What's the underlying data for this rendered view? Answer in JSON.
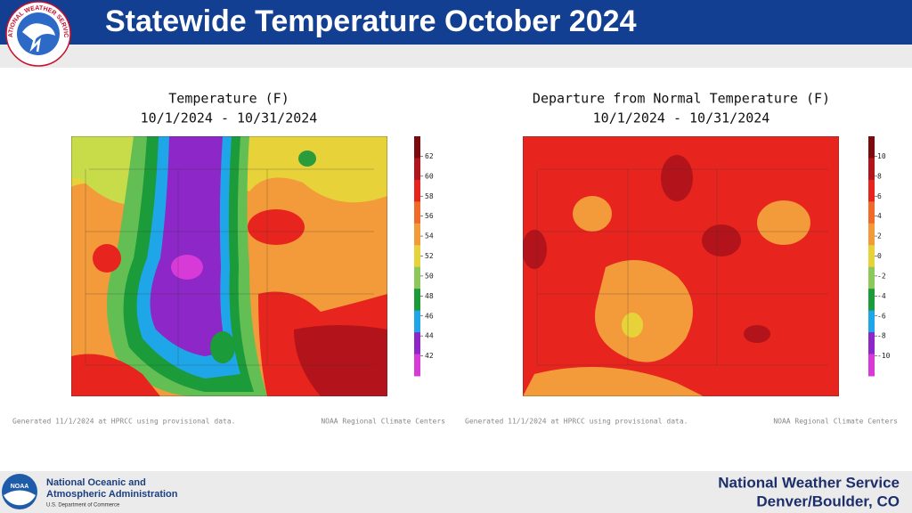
{
  "header": {
    "title": "Statewide Temperature October 2024",
    "logo_text": "NATIONAL WEATHER SERVICE"
  },
  "panels": [
    {
      "title": "Temperature (F)",
      "dates": "10/1/2024 - 10/31/2024",
      "legend_ticks": [
        62,
        60,
        58,
        56,
        54,
        52,
        50,
        48,
        46,
        44,
        42
      ],
      "generated": "Generated 11/1/2024 at HPRCC using provisional data.",
      "credit": "NOAA Regional Climate Centers"
    },
    {
      "title": "Departure from Normal Temperature (F)",
      "dates": "10/1/2024 - 10/31/2024",
      "legend_ticks": [
        10,
        8,
        6,
        4,
        2,
        0,
        -2,
        -4,
        -6,
        -8,
        -10
      ],
      "generated": "Generated 11/1/2024 at HPRCC using provisional data.",
      "credit": "NOAA Regional Climate Centers"
    }
  ],
  "footer": {
    "noaa_logo": "NOAA",
    "noaa_line1": "National Oceanic and",
    "noaa_line2": "Atmospheric Administration",
    "noaa_dept": "U.S. Department of Commerce",
    "nws": "National Weather Service",
    "office": "Denver/Boulder, CO"
  }
}
